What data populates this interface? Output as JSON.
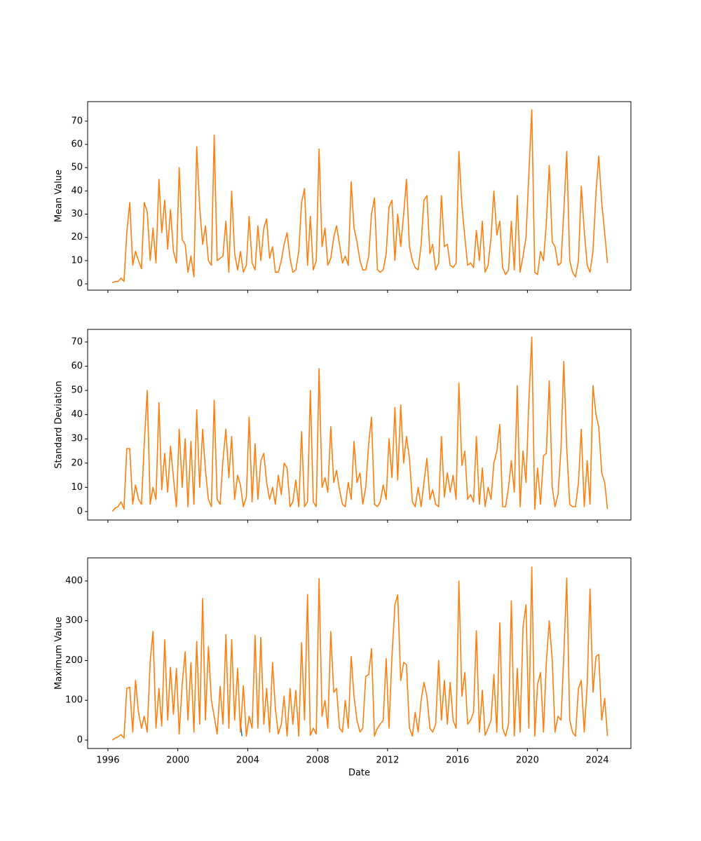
{
  "chart_data": [
    {
      "type": "line",
      "ylabel": "Mean Value",
      "x": [
        1996.25,
        1996.42,
        1996.58,
        1996.75,
        1996.92,
        1997.08,
        1997.25,
        1997.42,
        1997.58,
        1997.75,
        1997.92,
        1998.08,
        1998.25,
        1998.42,
        1998.58,
        1998.75,
        1998.92,
        1999.08,
        1999.25,
        1999.42,
        1999.58,
        1999.75,
        1999.92,
        2000.08,
        2000.25,
        2000.42,
        2000.58,
        2000.75,
        2000.92,
        2001.08,
        2001.25,
        2001.42,
        2001.58,
        2001.75,
        2001.92,
        2002.08,
        2002.25,
        2002.42,
        2002.58,
        2002.75,
        2002.92,
        2003.08,
        2003.25,
        2003.42,
        2003.58,
        2003.75,
        2003.92,
        2004.08,
        2004.25,
        2004.42,
        2004.58,
        2004.75,
        2004.92,
        2005.08,
        2005.25,
        2005.42,
        2005.58,
        2005.75,
        2005.92,
        2006.08,
        2006.25,
        2006.42,
        2006.58,
        2006.75,
        2006.92,
        2007.08,
        2007.25,
        2007.42,
        2007.58,
        2007.75,
        2007.92,
        2008.08,
        2008.25,
        2008.42,
        2008.58,
        2008.75,
        2008.92,
        2009.08,
        2009.25,
        2009.42,
        2009.58,
        2009.75,
        2009.92,
        2010.08,
        2010.25,
        2010.42,
        2010.58,
        2010.75,
        2010.92,
        2011.08,
        2011.25,
        2011.42,
        2011.58,
        2011.75,
        2011.92,
        2012.08,
        2012.25,
        2012.42,
        2012.58,
        2012.75,
        2012.92,
        2013.08,
        2013.25,
        2013.42,
        2013.58,
        2013.75,
        2013.92,
        2014.08,
        2014.25,
        2014.42,
        2014.58,
        2014.75,
        2014.92,
        2015.08,
        2015.25,
        2015.42,
        2015.58,
        2015.75,
        2015.92,
        2016.08,
        2016.25,
        2016.42,
        2016.58,
        2016.75,
        2016.92,
        2017.08,
        2017.25,
        2017.42,
        2017.58,
        2017.75,
        2017.92,
        2018.08,
        2018.25,
        2018.42,
        2018.58,
        2018.75,
        2018.92,
        2019.08,
        2019.25,
        2019.42,
        2019.58,
        2019.75,
        2019.92,
        2020.08,
        2020.25,
        2020.42,
        2020.58,
        2020.75,
        2020.92,
        2021.08,
        2021.25,
        2021.42,
        2021.58,
        2021.75,
        2021.92,
        2022.08,
        2022.25,
        2022.42,
        2022.58,
        2022.75,
        2022.92,
        2023.08,
        2023.25,
        2023.42,
        2023.58,
        2023.75,
        2023.92,
        2024.08,
        2024.25,
        2024.42,
        2024.58
      ],
      "series": [
        {
          "color": "#ff7f0e",
          "values": [
            0.5,
            1,
            1,
            2.5,
            1,
            22,
            35,
            8,
            14,
            10,
            6.5,
            35,
            31,
            10,
            24,
            9,
            45,
            22,
            36,
            15,
            32,
            14,
            9,
            50,
            19,
            17,
            5,
            12,
            3,
            59,
            33,
            17,
            25,
            10,
            8,
            64,
            10,
            11,
            12,
            27,
            5,
            40,
            13,
            6,
            14,
            5,
            8,
            29,
            9,
            6,
            25,
            10,
            24,
            28,
            11,
            16,
            5,
            5,
            10,
            17,
            22,
            11,
            5,
            6,
            14,
            35,
            41,
            8,
            29,
            6,
            10,
            58,
            16,
            24,
            8,
            11,
            20,
            25,
            17,
            9,
            12,
            8,
            44,
            24,
            18,
            10,
            6,
            6,
            12,
            30,
            37,
            6,
            5,
            6,
            13,
            33,
            36,
            10,
            30,
            16,
            30,
            45,
            16,
            10,
            7,
            6,
            17,
            36,
            38,
            13,
            17,
            6,
            9,
            38,
            16,
            17,
            8,
            7,
            9,
            57,
            34,
            20,
            8,
            9,
            7,
            23,
            10,
            27,
            5,
            8,
            20,
            40,
            21,
            27,
            7,
            4,
            6,
            27,
            6,
            38,
            5,
            12,
            20,
            47,
            75,
            5,
            4,
            14,
            10,
            26,
            51,
            18,
            16,
            8,
            9,
            31,
            57,
            10,
            5,
            3,
            10,
            42,
            23,
            8,
            5,
            14,
            39,
            55,
            35,
            22,
            9
          ]
        }
      ],
      "xlim": [
        1994.84,
        2025.92
      ],
      "xticks": [
        1996,
        2000,
        2004,
        2008,
        2012,
        2016,
        2020,
        2024
      ],
      "ylim": [
        -2.7,
        78.4
      ],
      "yticks": [
        0,
        10,
        20,
        30,
        40,
        50,
        60,
        70
      ]
    },
    {
      "type": "line",
      "ylabel": "Standard Deviation",
      "x": [
        1996.25,
        1996.42,
        1996.58,
        1996.75,
        1996.92,
        1997.08,
        1997.25,
        1997.42,
        1997.58,
        1997.75,
        1997.92,
        1998.08,
        1998.25,
        1998.42,
        1998.58,
        1998.75,
        1998.92,
        1999.08,
        1999.25,
        1999.42,
        1999.58,
        1999.75,
        1999.92,
        2000.08,
        2000.25,
        2000.42,
        2000.58,
        2000.75,
        2000.92,
        2001.08,
        2001.25,
        2001.42,
        2001.58,
        2001.75,
        2001.92,
        2002.08,
        2002.25,
        2002.42,
        2002.58,
        2002.75,
        2002.92,
        2003.08,
        2003.25,
        2003.42,
        2003.58,
        2003.75,
        2003.92,
        2004.08,
        2004.25,
        2004.42,
        2004.58,
        2004.75,
        2004.92,
        2005.08,
        2005.25,
        2005.42,
        2005.58,
        2005.75,
        2005.92,
        2006.08,
        2006.25,
        2006.42,
        2006.58,
        2006.75,
        2006.92,
        2007.08,
        2007.25,
        2007.42,
        2007.58,
        2007.75,
        2007.92,
        2008.08,
        2008.25,
        2008.42,
        2008.58,
        2008.75,
        2008.92,
        2009.08,
        2009.25,
        2009.42,
        2009.58,
        2009.75,
        2009.92,
        2010.08,
        2010.25,
        2010.42,
        2010.58,
        2010.75,
        2010.92,
        2011.08,
        2011.25,
        2011.42,
        2011.58,
        2011.75,
        2011.92,
        2012.08,
        2012.25,
        2012.42,
        2012.58,
        2012.75,
        2012.92,
        2013.08,
        2013.25,
        2013.42,
        2013.58,
        2013.75,
        2013.92,
        2014.08,
        2014.25,
        2014.42,
        2014.58,
        2014.75,
        2014.92,
        2015.08,
        2015.25,
        2015.42,
        2015.58,
        2015.75,
        2015.92,
        2016.08,
        2016.25,
        2016.42,
        2016.58,
        2016.75,
        2016.92,
        2017.08,
        2017.25,
        2017.42,
        2017.58,
        2017.75,
        2017.92,
        2018.08,
        2018.25,
        2018.42,
        2018.58,
        2018.75,
        2018.92,
        2019.08,
        2019.25,
        2019.42,
        2019.58,
        2019.75,
        2019.92,
        2020.08,
        2020.25,
        2020.42,
        2020.58,
        2020.75,
        2020.92,
        2021.08,
        2021.25,
        2021.42,
        2021.58,
        2021.75,
        2021.92,
        2022.08,
        2022.25,
        2022.42,
        2022.58,
        2022.75,
        2022.92,
        2023.08,
        2023.25,
        2023.42,
        2023.58,
        2023.75,
        2023.92,
        2024.08,
        2024.25,
        2024.42,
        2024.58
      ],
      "series": [
        {
          "color": "#ff7f0e",
          "values": [
            0,
            1.5,
            2,
            4,
            1,
            26,
            26,
            3,
            11,
            5,
            3,
            28,
            50,
            3,
            10,
            5,
            45,
            9,
            24,
            8,
            27,
            14,
            2,
            34,
            10,
            30,
            2,
            29,
            3,
            42,
            10,
            34,
            17,
            5,
            2,
            46,
            5,
            3,
            21,
            34,
            14,
            31,
            5,
            15,
            11,
            2,
            6,
            39,
            4,
            28,
            5,
            21,
            24,
            12,
            5,
            10,
            3,
            15,
            7,
            20,
            18,
            2,
            4,
            13,
            2,
            33,
            2,
            4,
            50,
            4,
            2,
            59,
            10,
            14,
            8,
            35,
            12,
            17,
            9,
            3,
            2,
            12,
            5,
            29,
            12,
            16,
            3,
            10,
            28,
            39,
            3,
            2,
            4,
            11,
            5,
            30,
            14,
            43,
            13,
            44,
            20,
            31,
            22,
            4,
            2,
            10,
            2,
            12,
            22,
            5,
            9,
            3,
            2,
            31,
            6,
            16,
            8,
            15,
            5,
            53,
            19,
            25,
            5,
            7,
            4,
            31,
            3,
            18,
            2,
            10,
            5,
            20,
            25,
            36,
            2,
            2,
            10,
            21,
            8,
            52,
            2,
            25,
            12,
            45,
            72,
            1,
            18,
            3,
            23,
            24,
            54,
            10,
            2,
            7,
            26,
            62,
            26,
            3,
            2,
            2,
            12,
            34,
            2,
            21,
            3,
            52,
            40,
            35,
            16,
            12,
            1
          ]
        }
      ],
      "xlim": [
        1994.84,
        2025.92
      ],
      "xticks": [
        1996,
        2000,
        2004,
        2008,
        2012,
        2016,
        2020,
        2024
      ],
      "ylim": [
        -3.5,
        75.2
      ],
      "yticks": [
        0,
        10,
        20,
        30,
        40,
        50,
        60,
        70
      ]
    },
    {
      "type": "line",
      "ylabel": "Maximum Value",
      "xlabel": "Date",
      "x": [
        1996.25,
        1996.42,
        1996.58,
        1996.75,
        1996.92,
        1997.08,
        1997.25,
        1997.42,
        1997.58,
        1997.75,
        1997.92,
        1998.08,
        1998.25,
        1998.42,
        1998.58,
        1998.75,
        1998.92,
        1999.08,
        1999.25,
        1999.42,
        1999.58,
        1999.75,
        1999.92,
        2000.08,
        2000.25,
        2000.42,
        2000.58,
        2000.75,
        2000.92,
        2001.08,
        2001.25,
        2001.42,
        2001.58,
        2001.75,
        2001.92,
        2002.08,
        2002.25,
        2002.42,
        2002.58,
        2002.75,
        2002.92,
        2003.08,
        2003.25,
        2003.42,
        2003.58,
        2003.75,
        2003.92,
        2004.08,
        2004.25,
        2004.42,
        2004.58,
        2004.75,
        2004.92,
        2005.08,
        2005.25,
        2005.42,
        2005.58,
        2005.75,
        2005.92,
        2006.08,
        2006.25,
        2006.42,
        2006.58,
        2006.75,
        2006.92,
        2007.08,
        2007.25,
        2007.42,
        2007.58,
        2007.75,
        2007.92,
        2008.08,
        2008.25,
        2008.42,
        2008.58,
        2008.75,
        2008.92,
        2009.08,
        2009.25,
        2009.42,
        2009.58,
        2009.75,
        2009.92,
        2010.08,
        2010.25,
        2010.42,
        2010.58,
        2010.75,
        2010.92,
        2011.08,
        2011.25,
        2011.42,
        2011.58,
        2011.75,
        2011.92,
        2012.08,
        2012.25,
        2012.42,
        2012.58,
        2012.75,
        2012.92,
        2013.08,
        2013.25,
        2013.42,
        2013.58,
        2013.75,
        2013.92,
        2014.08,
        2014.25,
        2014.42,
        2014.58,
        2014.75,
        2014.92,
        2015.08,
        2015.25,
        2015.42,
        2015.58,
        2015.75,
        2015.92,
        2016.08,
        2016.25,
        2016.42,
        2016.58,
        2016.75,
        2016.92,
        2017.08,
        2017.25,
        2017.42,
        2017.58,
        2017.75,
        2017.92,
        2018.08,
        2018.25,
        2018.42,
        2018.58,
        2018.75,
        2018.92,
        2019.08,
        2019.25,
        2019.42,
        2019.58,
        2019.75,
        2019.92,
        2020.08,
        2020.25,
        2020.42,
        2020.58,
        2020.75,
        2020.92,
        2021.08,
        2021.25,
        2021.42,
        2021.58,
        2021.75,
        2021.92,
        2022.08,
        2022.25,
        2022.42,
        2022.58,
        2022.75,
        2022.92,
        2023.08,
        2023.25,
        2023.42,
        2023.58,
        2023.75,
        2023.92,
        2024.08,
        2024.25,
        2024.42,
        2024.58
      ],
      "series": [
        {
          "color": "#1f77b4",
          "x": [
            2003.55,
            2003.67
          ],
          "values": [
            55,
            10
          ]
        },
        {
          "color": "#ff7f0e",
          "values": [
            0,
            5,
            8,
            14,
            5,
            130,
            133,
            20,
            150,
            70,
            30,
            60,
            20,
            200,
            273,
            30,
            130,
            35,
            252,
            50,
            183,
            65,
            180,
            15,
            140,
            222,
            50,
            195,
            20,
            248,
            40,
            356,
            50,
            235,
            100,
            60,
            15,
            135,
            40,
            265,
            30,
            253,
            50,
            180,
            20,
            137,
            10,
            60,
            30,
            263,
            30,
            258,
            40,
            130,
            20,
            195,
            80,
            15,
            40,
            110,
            10,
            130,
            40,
            125,
            10,
            245,
            50,
            366,
            12,
            30,
            15,
            406,
            60,
            100,
            30,
            273,
            120,
            130,
            30,
            20,
            100,
            30,
            210,
            110,
            50,
            20,
            30,
            160,
            165,
            230,
            10,
            30,
            40,
            50,
            205,
            30,
            210,
            340,
            365,
            150,
            195,
            190,
            30,
            10,
            70,
            20,
            100,
            145,
            110,
            30,
            20,
            40,
            200,
            50,
            150,
            40,
            145,
            50,
            30,
            400,
            110,
            170,
            40,
            50,
            70,
            275,
            20,
            125,
            12,
            30,
            50,
            165,
            20,
            295,
            30,
            10,
            40,
            350,
            10,
            180,
            20,
            285,
            340,
            30,
            435,
            10,
            140,
            170,
            20,
            195,
            300,
            200,
            20,
            60,
            50,
            210,
            407,
            50,
            20,
            10,
            130,
            150,
            20,
            140,
            380,
            120,
            210,
            215,
            50,
            105,
            10
          ]
        }
      ],
      "xlim": [
        1994.84,
        2025.92
      ],
      "xticks": [
        1996,
        2000,
        2004,
        2008,
        2012,
        2016,
        2020,
        2024
      ],
      "ylim": [
        -21.1,
        458
      ],
      "yticks": [
        0,
        100,
        200,
        300,
        400
      ]
    }
  ]
}
